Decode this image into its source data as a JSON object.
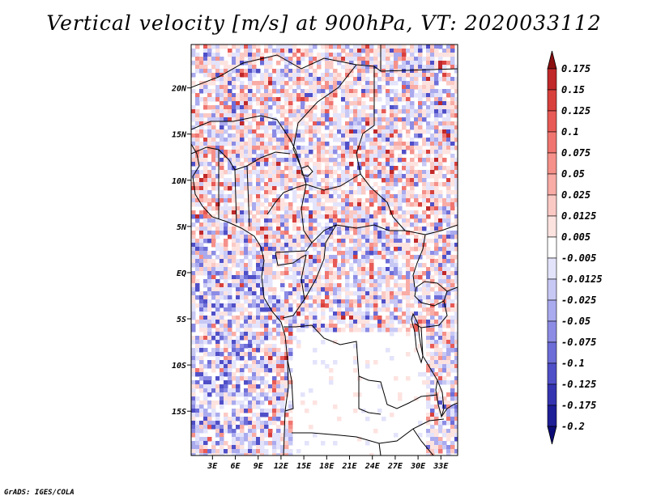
{
  "chart_data": {
    "type": "heatmap",
    "title": "Vertical velocity [m/s] at 900hPa, VT: 2020033112",
    "variable": "Vertical velocity",
    "units": "m/s",
    "level": "900hPa",
    "valid_time": "2020033112",
    "x_ticks": [
      "3E",
      "6E",
      "9E",
      "12E",
      "15E",
      "18E",
      "21E",
      "24E",
      "27E",
      "30E",
      "33E"
    ],
    "x_tick_values": [
      3,
      6,
      9,
      12,
      15,
      18,
      21,
      24,
      27,
      30,
      33
    ],
    "y_ticks": [
      "20N",
      "15N",
      "10N",
      "5N",
      "EQ",
      "5S",
      "10S",
      "15S"
    ],
    "y_tick_values": [
      20,
      15,
      10,
      5,
      0,
      -5,
      -10,
      -15
    ],
    "xlim": [
      0.2,
      35.2
    ],
    "ylim": [
      -19.8,
      24.7
    ],
    "colorbar_levels": [
      "0.175",
      "0.15",
      "0.125",
      "0.1",
      "0.075",
      "0.05",
      "0.025",
      "0.0125",
      "0.005",
      "-0.005",
      "-0.0125",
      "-0.025",
      "-0.05",
      "-0.075",
      "-0.1",
      "-0.125",
      "-0.175",
      "-0.2"
    ],
    "colorbar_colors": [
      "#a31a1a",
      "#c0282a",
      "#d8403c",
      "#e85a55",
      "#f07570",
      "#f5918a",
      "#f8aca5",
      "#fbc9c4",
      "#fde3e0",
      "#ffffff",
      "#e3e3fb",
      "#c8c8f5",
      "#aaaaee",
      "#8c8ce5",
      "#6d6dd8",
      "#4f4fc8",
      "#3434b0",
      "#1e1e96",
      "#0c0c78"
    ],
    "colorbar_top_color": "#8b1010",
    "colorbar_bottom_color": "#0c0c78"
  },
  "credit": "GrADS: IGES/COLA"
}
